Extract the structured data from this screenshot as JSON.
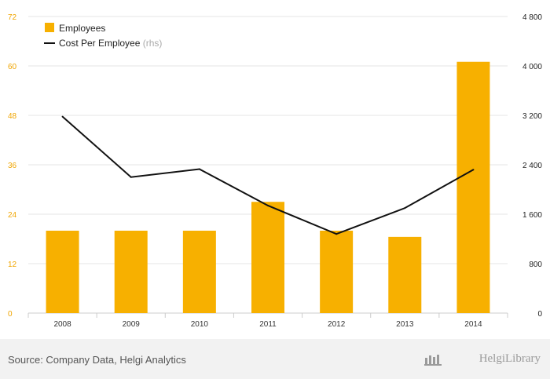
{
  "chart_data": {
    "type": "bar+line",
    "categories": [
      "2008",
      "2009",
      "2010",
      "2011",
      "2012",
      "2013",
      "2014"
    ],
    "series": [
      {
        "name": "Employees",
        "type": "bar",
        "axis": "left",
        "color": "#f7b000",
        "values": [
          20,
          20,
          20,
          27,
          20,
          18.5,
          61
        ]
      },
      {
        "name": "Cost Per Employee",
        "legend_suffix": "(rhs)",
        "type": "line",
        "axis": "right",
        "color": "#111111",
        "values": [
          3180,
          2200,
          2330,
          1740,
          1280,
          1700,
          2320
        ]
      }
    ],
    "y_left": {
      "min": 0,
      "max": 72,
      "ticks": [
        "0",
        "12",
        "24",
        "36",
        "48",
        "60",
        "72"
      ]
    },
    "y_right": {
      "min": 0,
      "max": 4800,
      "ticks": [
        "0",
        "800",
        "1 600",
        "2 400",
        "3 200",
        "4 000",
        "4 800"
      ]
    },
    "grid": true,
    "legend_position": "top-left"
  },
  "footer": {
    "source": "Source: Company Data, Helgi Analytics",
    "brand": "HelgiLibrary"
  },
  "colors": {
    "bar": "#f7b000",
    "line": "#111111",
    "grid": "#e6e6e6",
    "left_axis_text": "#f0a500"
  }
}
